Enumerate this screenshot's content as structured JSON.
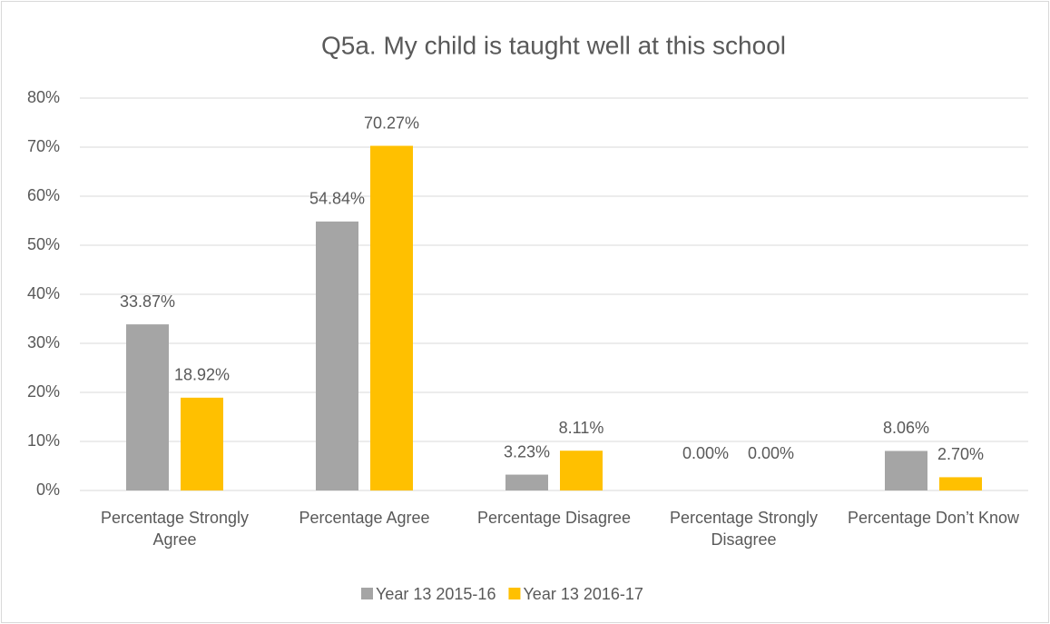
{
  "chart_data": {
    "type": "bar",
    "title": "Q5a. My child is taught well at this school",
    "categories": [
      "Percentage Strongly Agree",
      "Percentage Agree",
      "Percentage Disagree",
      "Percentage Strongly Disagree",
      "Percentage Don’t Know"
    ],
    "series": [
      {
        "name": "Year 13 2015-16",
        "color": "#a5a5a5",
        "values": [
          33.87,
          54.84,
          3.23,
          0,
          8.06
        ],
        "value_labels": [
          "33.87%",
          "54.84%",
          "3.23%",
          "0.00%",
          "8.06%"
        ]
      },
      {
        "name": "Year 13 2016-17",
        "color": "#ffc000",
        "values": [
          18.92,
          70.27,
          8.11,
          0,
          2.7
        ],
        "value_labels": [
          "18.92%",
          "70.27%",
          "8.11%",
          "0.00%",
          "2.70%"
        ]
      }
    ],
    "ylim": [
      0,
      80
    ],
    "yticks": [
      {
        "value": 0,
        "label": "0%"
      },
      {
        "value": 10,
        "label": "10%"
      },
      {
        "value": 20,
        "label": "20%"
      },
      {
        "value": 30,
        "label": "30%"
      },
      {
        "value": 40,
        "label": "40%"
      },
      {
        "value": 50,
        "label": "50%"
      },
      {
        "value": 60,
        "label": "60%"
      },
      {
        "value": 70,
        "label": "70%"
      },
      {
        "value": 80,
        "label": "80%"
      }
    ],
    "grid": true,
    "legend": "bottom"
  }
}
